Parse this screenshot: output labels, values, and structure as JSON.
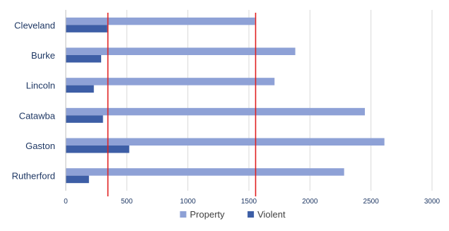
{
  "chart_data": {
    "type": "bar",
    "orientation": "horizontal",
    "categories": [
      "Cleveland",
      "Burke",
      "Lincoln",
      "Catawba",
      "Gaston",
      "Rutherford"
    ],
    "series": [
      {
        "name": "Property",
        "color": "#8ea1d6",
        "values": [
          1550,
          1880,
          1710,
          2450,
          2610,
          2280
        ]
      },
      {
        "name": "Violent",
        "color": "#3d5ea6",
        "values": [
          340,
          290,
          230,
          305,
          520,
          190
        ]
      }
    ],
    "reference_lines": [
      {
        "x": 345,
        "color": "#e02020"
      },
      {
        "x": 1555,
        "color": "#e02020"
      }
    ],
    "xlim": [
      0,
      3000
    ],
    "xticks": [
      0,
      500,
      1000,
      1500,
      2000,
      2500,
      3000
    ],
    "grid": "vertical",
    "legend": "bottom"
  }
}
